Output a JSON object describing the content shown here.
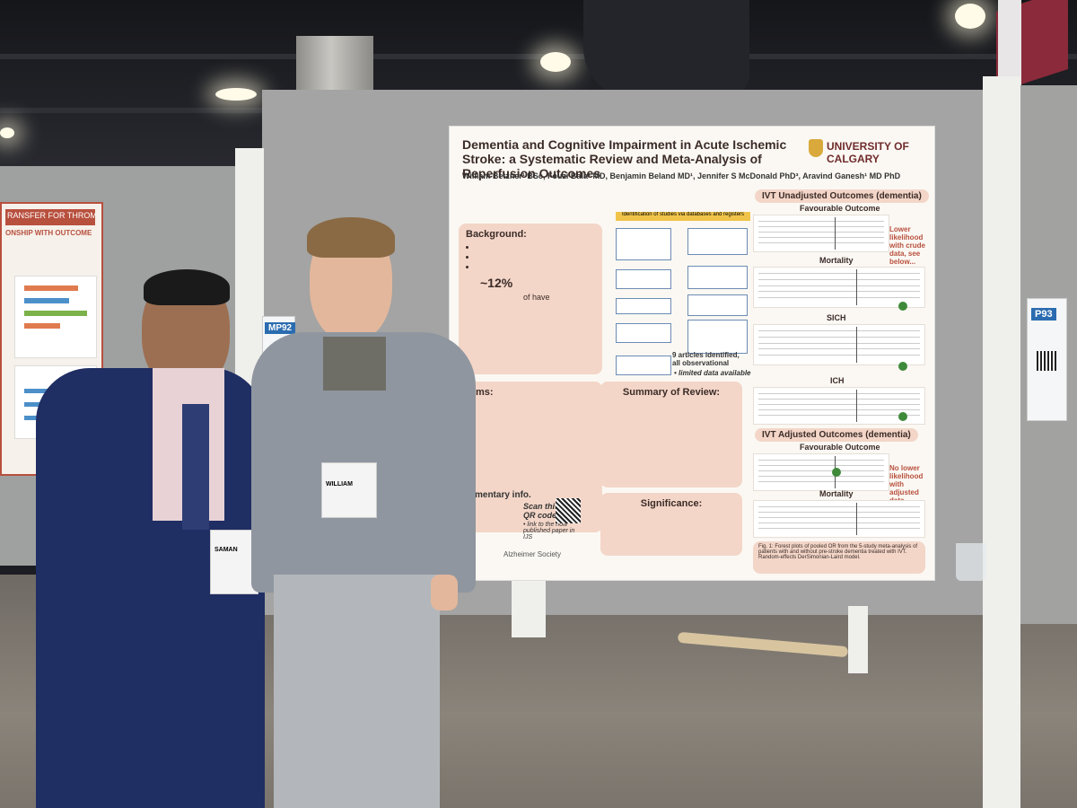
{
  "poster": {
    "title": "Dementia and Cognitive Impairment in Acute Ischemic Stroke: a Systematic Review and Meta-Analysis of Reperfusion Outcomes",
    "authors": "William Betzner¹ BSc, Fouzi Bala² MD, Benjamin Beland MD¹, Jennifer S McDonald PhD³, Aravind Ganesh¹ MD PhD",
    "institution": "UNIVERSITY OF CALGARY",
    "background_heading": "Background:",
    "background_stat": "~12%",
    "background_stat_suffix": "of have",
    "aims_heading": "Aims:",
    "summary_heading": "Summary of Review:",
    "significance_heading": "Significance:",
    "supplementary_heading": "mentary info.",
    "qr_caption": "Scan this QR code",
    "qr_sub": "• link to the now published paper in IJS",
    "flow_heading": "Identification of studies via databases and registers",
    "flow_result": "9 articles identified, all observational",
    "flow_result_sub": "• limited data available",
    "ivt_unadjusted": "IVT Unadjusted Outcomes (dementia)",
    "ivt_adjusted": "IVT Adjusted Outcomes (dementia)",
    "favourable_outcome": "Favourable Outcome",
    "mortality": "Mortality",
    "sich": "SICH",
    "ich": "ICH",
    "favourable_outcome_2": "Favourable Outcome",
    "mortality_2": "Mortality",
    "note_unadjusted": "Lower likelihood with crude data, see below...",
    "note_adjusted": "No lower likelihood with adjusted data",
    "figure_caption": "Fig. 1: Forest plots of pooled OR from the 5-study meta-analysis of patients with and without pre-stroke dementia treated with IVT. Random-effects DerSimonian-Laird model.",
    "sponsor": "Alzheimer Society"
  },
  "left_poster": {
    "title": "RANSFER FOR THROMBECTOMY",
    "subtitle": "ONSHIP WITH OUTCOME"
  },
  "signs": {
    "center": "MP92",
    "right": "P93"
  },
  "badges": {
    "left_name": "SAMAN",
    "right_name": "WILLIAM"
  }
}
